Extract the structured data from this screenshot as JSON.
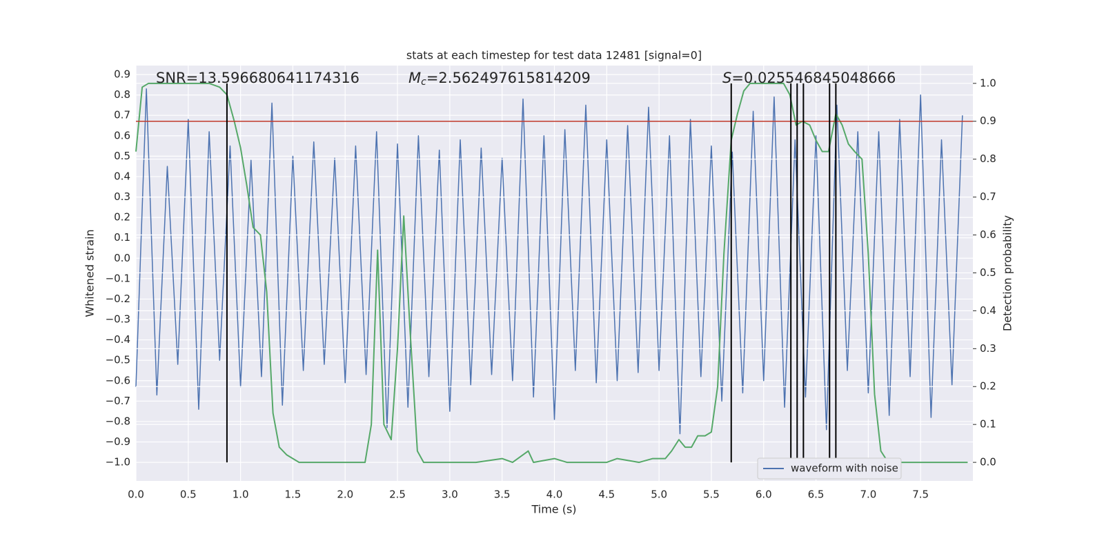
{
  "chart_data": {
    "type": "line",
    "title": "stats at each timestep for test data 12481 [signal=0]",
    "xlabel": "Time (s)",
    "ylabel": "Whitened strain",
    "y2label": "Detection probability",
    "xlim": [
      0,
      8.0
    ],
    "ylim": [
      -1.091,
      0.944
    ],
    "y2lim": [
      -0.049,
      1.047
    ],
    "xticks": [
      {
        "value": 0.0,
        "label": "0.0"
      },
      0.5,
      {
        "value": 1.0,
        "label": "1.0"
      },
      1.5,
      {
        "value": 2.0,
        "label": "2.0"
      },
      2.5,
      {
        "value": 3.0,
        "label": "3.0"
      },
      3.5,
      {
        "value": 4.0,
        "label": "4.0"
      },
      4.5,
      {
        "value": 5.0,
        "label": "5.0"
      },
      5.5,
      {
        "value": 6.0,
        "label": "6.0"
      },
      6.5,
      {
        "value": 7.0,
        "label": "7.0"
      },
      7.5
    ],
    "yticks": [
      {
        "value": -1.0,
        "label": "−1.0"
      },
      {
        "value": -0.9,
        "label": "−0.9"
      },
      {
        "value": -0.8,
        "label": "−0.8"
      },
      {
        "value": -0.7,
        "label": "−0.7"
      },
      {
        "value": -0.6,
        "label": "−0.6"
      },
      {
        "value": -0.5,
        "label": "−0.5"
      },
      {
        "value": -0.4,
        "label": "−0.4"
      },
      {
        "value": -0.3,
        "label": "−0.3"
      },
      {
        "value": -0.2,
        "label": "−0.2"
      },
      {
        "value": -0.1,
        "label": "−0.1"
      },
      {
        "value": 0.0,
        "label": "0.0"
      },
      0.1,
      0.2,
      0.3,
      0.4,
      0.5,
      0.6,
      0.7,
      0.8,
      0.9
    ],
    "y2ticks": [
      {
        "value": 0.0,
        "label": "0.0"
      },
      0.1,
      0.2,
      0.3,
      0.4,
      0.5,
      0.6,
      0.7,
      0.8,
      0.9,
      {
        "value": 1.0,
        "label": "1.0"
      }
    ],
    "grid": true,
    "legend": "lower right",
    "series": [
      {
        "name": "waveform with noise",
        "color": "#4c72b0",
        "x": [
          0.0,
          0.1,
          0.2,
          0.3,
          0.4,
          0.5,
          0.6,
          0.7,
          0.8,
          0.9,
          1.0,
          1.1,
          1.2,
          1.3,
          1.4,
          1.5,
          1.6,
          1.7,
          1.8,
          1.9,
          2.0,
          2.1,
          2.2,
          2.3,
          2.4,
          2.5,
          2.6,
          2.7,
          2.8,
          2.9,
          3.0,
          3.1,
          3.2,
          3.3,
          3.4,
          3.5,
          3.6,
          3.7,
          3.8,
          3.9,
          4.0,
          4.1,
          4.2,
          4.3,
          4.4,
          4.5,
          4.6,
          4.7,
          4.8,
          4.9,
          5.0,
          5.1,
          5.2,
          5.3,
          5.4,
          5.5,
          5.6,
          5.7,
          5.8,
          5.9,
          6.0,
          6.1,
          6.2,
          6.3,
          6.4,
          6.5,
          6.6,
          6.7,
          6.8,
          6.9,
          7.0,
          7.1,
          7.2,
          7.3,
          7.4,
          7.5,
          7.6,
          7.7,
          7.8,
          7.9
        ],
        "values": [
          -0.63,
          0.83,
          -0.67,
          0.45,
          -0.52,
          0.68,
          -0.74,
          0.62,
          -0.5,
          0.55,
          -0.63,
          0.48,
          -0.58,
          0.76,
          -0.72,
          0.5,
          -0.55,
          0.57,
          -0.52,
          0.49,
          -0.61,
          0.55,
          -0.57,
          0.62,
          -0.83,
          0.56,
          -0.73,
          0.6,
          -0.58,
          0.53,
          -0.75,
          0.58,
          -0.62,
          0.54,
          -0.57,
          0.49,
          -0.6,
          0.78,
          -0.68,
          0.6,
          -0.79,
          0.63,
          -0.55,
          0.75,
          -0.61,
          0.58,
          -0.6,
          0.65,
          -0.56,
          0.74,
          -0.55,
          0.6,
          -0.86,
          0.68,
          -0.58,
          0.55,
          -0.7,
          0.52,
          -0.66,
          0.72,
          -0.6,
          0.79,
          -0.73,
          0.58,
          -0.68,
          0.6,
          -0.84,
          0.75,
          -0.55,
          0.62,
          -0.66,
          0.62,
          -0.77,
          0.68,
          -0.58,
          0.8,
          -0.78,
          0.58,
          -0.62,
          0.7
        ]
      },
      {
        "color": "#55a868",
        "axis": "y2",
        "x": [
          0.0,
          0.06,
          0.12,
          0.5,
          0.7,
          0.8,
          0.87,
          0.94,
          1.0,
          1.06,
          1.12,
          1.19,
          1.25,
          1.31,
          1.37,
          1.44,
          1.5,
          1.56,
          1.75,
          2.0,
          2.19,
          2.25,
          2.31,
          2.37,
          2.44,
          2.5,
          2.56,
          2.62,
          2.69,
          2.75,
          3.0,
          3.25,
          3.5,
          3.6,
          3.75,
          3.8,
          4.0,
          4.12,
          4.25,
          4.5,
          4.6,
          4.81,
          4.94,
          5.0,
          5.06,
          5.12,
          5.19,
          5.25,
          5.31,
          5.37,
          5.44,
          5.5,
          5.56,
          5.62,
          5.69,
          5.75,
          5.81,
          5.87,
          6.0,
          6.19,
          6.25,
          6.31,
          6.37,
          6.44,
          6.5,
          6.56,
          6.62,
          6.69,
          6.75,
          6.81,
          6.87,
          6.94,
          7.0,
          7.06,
          7.12,
          7.19,
          7.5,
          7.95
        ],
        "values": [
          0.82,
          0.99,
          1.0,
          1.0,
          1.0,
          0.99,
          0.97,
          0.9,
          0.83,
          0.73,
          0.62,
          0.6,
          0.45,
          0.13,
          0.04,
          0.02,
          0.01,
          0.0,
          0.0,
          0.0,
          0.0,
          0.1,
          0.56,
          0.1,
          0.06,
          0.3,
          0.65,
          0.35,
          0.03,
          0.0,
          0.0,
          0.0,
          0.01,
          0.0,
          0.03,
          0.0,
          0.01,
          0.0,
          0.0,
          0.0,
          0.01,
          0.0,
          0.01,
          0.01,
          0.01,
          0.03,
          0.06,
          0.04,
          0.04,
          0.07,
          0.07,
          0.08,
          0.2,
          0.55,
          0.85,
          0.92,
          0.98,
          1.0,
          1.0,
          1.0,
          0.97,
          0.89,
          0.9,
          0.89,
          0.85,
          0.82,
          0.82,
          0.92,
          0.89,
          0.84,
          0.82,
          0.8,
          0.55,
          0.18,
          0.03,
          0.0,
          0.0,
          0.0
        ]
      }
    ],
    "vlines": {
      "x": [
        0.87,
        5.69,
        6.26,
        6.32,
        6.38,
        6.63,
        6.69
      ],
      "color": "#000000",
      "span": [
        0,
        1
      ]
    },
    "hlines": [
      {
        "value": 0.9,
        "axis": "y2",
        "color": "#c0392b"
      }
    ],
    "annotations": [
      {
        "text": "SNR=13.596680641174316"
      },
      {
        "symbol": "M",
        "subscript": "c",
        "text": "=2.562497615814209"
      },
      {
        "symbol": "S",
        "text": "=0.025546845048666"
      }
    ]
  }
}
